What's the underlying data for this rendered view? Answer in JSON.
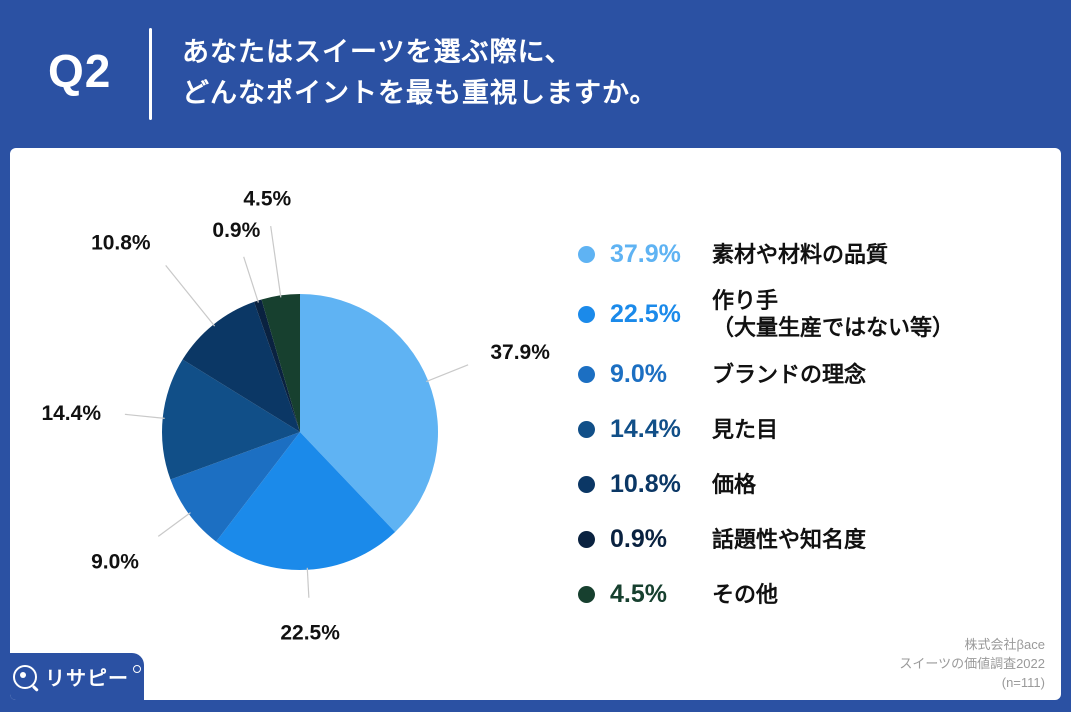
{
  "header": {
    "q": "Q2",
    "question_line1": "あなたはスイーツを選ぶ際に、",
    "question_line2": "どんなポイントを最も重視しますか。"
  },
  "chart_data": {
    "type": "pie",
    "title": "Q2 あなたはスイーツを選ぶ際に、どんなポイントを最も重視しますか。",
    "unit": "%",
    "order": "clockwise-from-top",
    "slices": [
      {
        "pct": "37.9%",
        "value": 37.9,
        "label": "素材や材料の品質",
        "color": "#5FB3F3"
      },
      {
        "pct": "22.5%",
        "value": 22.5,
        "label": "作り手\n（大量生産ではない等）",
        "color": "#1B8AEA"
      },
      {
        "pct": "9.0%",
        "value": 9.0,
        "label": "ブランドの理念",
        "color": "#1C6FC2"
      },
      {
        "pct": "14.4%",
        "value": 14.4,
        "label": "見た目",
        "color": "#114F88"
      },
      {
        "pct": "10.8%",
        "value": 10.8,
        "label": "価格",
        "color": "#0B3765"
      },
      {
        "pct": "0.9%",
        "value": 0.9,
        "label": "話題性や知名度",
        "color": "#0A2240"
      },
      {
        "pct": "4.5%",
        "value": 4.5,
        "label": "その他",
        "color": "#17402F"
      }
    ],
    "legend_position": "right"
  },
  "source": {
    "line1": "株式会社βace",
    "line2": "スイーツの価値調査2022",
    "line3": "(n=111)"
  },
  "logo": {
    "text": "リサピー"
  },
  "colors": {
    "background": "#2B51A3",
    "card": "#FFFFFF"
  }
}
